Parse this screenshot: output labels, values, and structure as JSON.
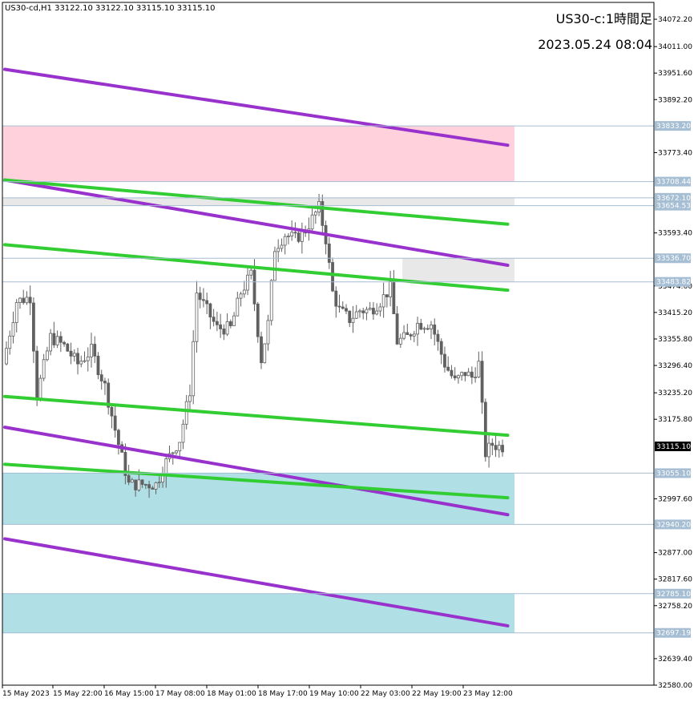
{
  "header": {
    "info": "US30-cd,H1  33122.10 33122.10 33115.10 33115.10",
    "title": "US30-c:1時間足",
    "datetime": "2023.05.24 08:04"
  },
  "colors": {
    "purple": "#9932CC",
    "green": "#32CD32",
    "supply": "#FFD1DC",
    "demand": "#B0E0E6",
    "grey": "#E8E8E8",
    "level_line": "#A6BED3",
    "candle": "#606060",
    "current_price_bg": "#000000"
  },
  "chart_data": {
    "type": "candlestick",
    "ylim": [
      32580.0,
      34110.0
    ],
    "y_ticks": [
      "34072.20",
      "34011.00",
      "33951.60",
      "33892.20",
      "33773.40",
      "33593.40",
      "33474.60",
      "33415.20",
      "33355.80",
      "33296.40",
      "33235.20",
      "33175.80",
      "32997.60",
      "32877.00",
      "32817.60",
      "32758.20",
      "32639.40",
      "32580.00"
    ],
    "x_ticks": [
      "15 May 2023",
      "15 May 22:00",
      "16 May 15:00",
      "17 May 08:00",
      "18 May 01:00",
      "18 May 17:00",
      "19 May 10:00",
      "22 May 03:00",
      "22 May 19:00",
      "23 May 12:00"
    ],
    "level_labels": [
      "33833.20",
      "33708.44",
      "33672.10",
      "33654.53",
      "33536.70",
      "33483.82",
      "33055.10",
      "32940.20",
      "32785.10",
      "32697.19"
    ],
    "current_price": "33115.10",
    "zones": [
      {
        "type": "supply",
        "from": 33708.44,
        "to": 33833.2
      },
      {
        "type": "grey",
        "from": 33654.53,
        "to": 33672.1
      },
      {
        "type": "grey",
        "from": 33483.82,
        "to": 33536.7,
        "start_bar": 117
      },
      {
        "type": "demand",
        "from": 32940.2,
        "to": 33055.1
      },
      {
        "type": "demand",
        "from": 32697.19,
        "to": 32785.1
      }
    ],
    "trendlines": [
      {
        "color": "purple",
        "from": [
          0,
          33960.0
        ],
        "to": [
          148,
          33790.0
        ]
      },
      {
        "color": "purple",
        "from": [
          0,
          33712.0
        ],
        "to": [
          148,
          33521.0
        ]
      },
      {
        "color": "purple",
        "from": [
          0,
          33158.0
        ],
        "to": [
          148,
          32962.0
        ]
      },
      {
        "color": "purple",
        "from": [
          0,
          32908.0
        ],
        "to": [
          148,
          32713.0
        ]
      },
      {
        "color": "green",
        "from": [
          0,
          33712.0
        ],
        "to": [
          148,
          33613.0
        ]
      },
      {
        "color": "green",
        "from": [
          0,
          33567.0
        ],
        "to": [
          148,
          33465.0
        ]
      },
      {
        "color": "green",
        "from": [
          0,
          33227.0
        ],
        "to": [
          148,
          33140.0
        ]
      },
      {
        "color": "green",
        "from": [
          0,
          33075.0
        ],
        "to": [
          148,
          33000.0
        ]
      }
    ],
    "series": [
      {
        "points": [
          {
            "b": 0,
            "v": 33300
          },
          {
            "b": 4,
            "v": 33440
          },
          {
            "b": 8,
            "v": 33450
          },
          {
            "b": 10,
            "v": 33230
          },
          {
            "b": 14,
            "v": 33360
          },
          {
            "b": 18,
            "v": 33340
          },
          {
            "b": 22,
            "v": 33300
          },
          {
            "b": 26,
            "v": 33330
          },
          {
            "b": 30,
            "v": 33250
          },
          {
            "b": 34,
            "v": 33120
          },
          {
            "b": 37,
            "v": 33030
          },
          {
            "b": 41,
            "v": 33030
          },
          {
            "b": 45,
            "v": 33030
          },
          {
            "b": 48,
            "v": 33080
          },
          {
            "b": 52,
            "v": 33130
          },
          {
            "b": 55,
            "v": 33240
          },
          {
            "b": 57,
            "v": 33460
          },
          {
            "b": 60,
            "v": 33420
          },
          {
            "b": 63,
            "v": 33380
          },
          {
            "b": 67,
            "v": 33380
          },
          {
            "b": 70,
            "v": 33460
          },
          {
            "b": 73,
            "v": 33500
          },
          {
            "b": 76,
            "v": 33310
          },
          {
            "b": 78,
            "v": 33390
          },
          {
            "b": 80,
            "v": 33560
          },
          {
            "b": 83,
            "v": 33590
          },
          {
            "b": 86,
            "v": 33580
          },
          {
            "b": 89,
            "v": 33600
          },
          {
            "b": 93,
            "v": 33650
          },
          {
            "b": 95,
            "v": 33580
          },
          {
            "b": 97,
            "v": 33460
          },
          {
            "b": 99,
            "v": 33420
          },
          {
            "b": 102,
            "v": 33400
          },
          {
            "b": 105,
            "v": 33420
          },
          {
            "b": 108,
            "v": 33420
          },
          {
            "b": 111,
            "v": 33440
          },
          {
            "b": 114,
            "v": 33470
          },
          {
            "b": 116,
            "v": 33350
          },
          {
            "b": 119,
            "v": 33360
          },
          {
            "b": 122,
            "v": 33390
          },
          {
            "b": 126,
            "v": 33390
          },
          {
            "b": 130,
            "v": 33300
          },
          {
            "b": 133,
            "v": 33260
          },
          {
            "b": 136,
            "v": 33280
          },
          {
            "b": 138,
            "v": 33270
          },
          {
            "b": 140,
            "v": 33300
          },
          {
            "b": 142,
            "v": 33100
          },
          {
            "b": 144,
            "v": 33120
          },
          {
            "b": 146,
            "v": 33115
          }
        ]
      }
    ]
  }
}
